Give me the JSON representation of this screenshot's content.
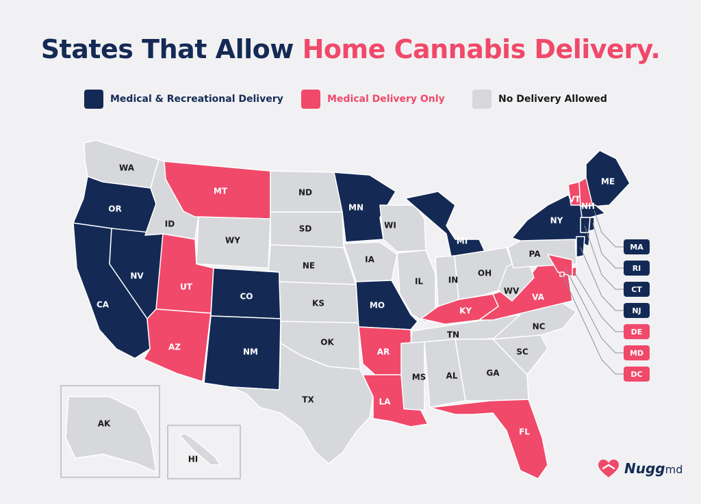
{
  "title": {
    "part1": "States That Allow ",
    "part2": "Home Cannabis Delivery."
  },
  "colors": {
    "rec": "#142a55",
    "med": "#f0496a",
    "none": "#d7d8dc",
    "text_dark": "#1a1a1a",
    "text_light": "#ffffff"
  },
  "legend": [
    {
      "key": "rec",
      "label": "Medical & Recreational Delivery"
    },
    {
      "key": "med",
      "label": "Medical Delivery Only"
    },
    {
      "key": "none",
      "label": "No Delivery Allowed"
    }
  ],
  "states": [
    {
      "abbr": "WA",
      "status": "none"
    },
    {
      "abbr": "OR",
      "status": "rec"
    },
    {
      "abbr": "CA",
      "status": "rec"
    },
    {
      "abbr": "NV",
      "status": "rec"
    },
    {
      "abbr": "ID",
      "status": "none"
    },
    {
      "abbr": "MT",
      "status": "med"
    },
    {
      "abbr": "WY",
      "status": "none"
    },
    {
      "abbr": "UT",
      "status": "med"
    },
    {
      "abbr": "AZ",
      "status": "med"
    },
    {
      "abbr": "CO",
      "status": "rec"
    },
    {
      "abbr": "NM",
      "status": "rec"
    },
    {
      "abbr": "ND",
      "status": "none"
    },
    {
      "abbr": "SD",
      "status": "none"
    },
    {
      "abbr": "NE",
      "status": "none"
    },
    {
      "abbr": "KS",
      "status": "none"
    },
    {
      "abbr": "OK",
      "status": "none"
    },
    {
      "abbr": "TX",
      "status": "none"
    },
    {
      "abbr": "MN",
      "status": "rec"
    },
    {
      "abbr": "IA",
      "status": "none"
    },
    {
      "abbr": "MO",
      "status": "rec"
    },
    {
      "abbr": "AR",
      "status": "med"
    },
    {
      "abbr": "LA",
      "status": "med"
    },
    {
      "abbr": "WI",
      "status": "none"
    },
    {
      "abbr": "IL",
      "status": "none"
    },
    {
      "abbr": "MI",
      "status": "rec"
    },
    {
      "abbr": "IN",
      "status": "none"
    },
    {
      "abbr": "OH",
      "status": "none"
    },
    {
      "abbr": "KY",
      "status": "med"
    },
    {
      "abbr": "TN",
      "status": "none"
    },
    {
      "abbr": "MS",
      "status": "none"
    },
    {
      "abbr": "AL",
      "status": "none"
    },
    {
      "abbr": "GA",
      "status": "none"
    },
    {
      "abbr": "FL",
      "status": "med"
    },
    {
      "abbr": "SC",
      "status": "none"
    },
    {
      "abbr": "NC",
      "status": "none"
    },
    {
      "abbr": "VA",
      "status": "med"
    },
    {
      "abbr": "WV",
      "status": "none"
    },
    {
      "abbr": "PA",
      "status": "none"
    },
    {
      "abbr": "NY",
      "status": "rec"
    },
    {
      "abbr": "VT",
      "status": "med"
    },
    {
      "abbr": "NH",
      "status": "med"
    },
    {
      "abbr": "ME",
      "status": "rec"
    },
    {
      "abbr": "AK",
      "status": "none"
    },
    {
      "abbr": "HI",
      "status": "none"
    }
  ],
  "small_states": [
    {
      "abbr": "MA",
      "status": "rec"
    },
    {
      "abbr": "RI",
      "status": "rec"
    },
    {
      "abbr": "CT",
      "status": "rec"
    },
    {
      "abbr": "NJ",
      "status": "rec"
    },
    {
      "abbr": "DE",
      "status": "med"
    },
    {
      "abbr": "MD",
      "status": "med"
    },
    {
      "abbr": "DC",
      "status": "med"
    }
  ],
  "logo": {
    "name": "Nugg",
    "suffix": "md",
    "icon": "heart-icon"
  }
}
